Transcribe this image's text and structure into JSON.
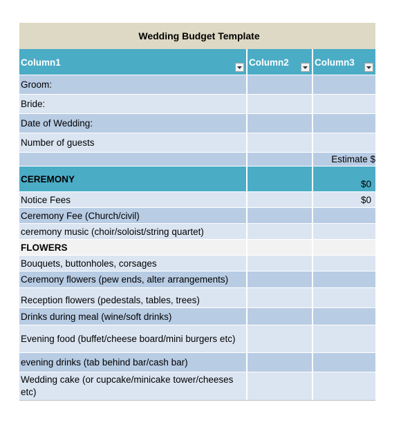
{
  "title": "Wedding Budget Template",
  "headers": [
    "Column1",
    "Column2",
    "Column3"
  ],
  "rows": {
    "groom": "Groom:",
    "bride": "Bride:",
    "date": "Date of Wedding:",
    "guests": "Number of guests",
    "estimate": "Estimate $",
    "ceremony": "CEREMONY",
    "ceremony_total": "$0",
    "notice": "Notice Fees",
    "notice_val": "$0",
    "ceremony_fee": "Ceremony Fee (Church/civil)",
    "ceremony_music": "ceremony music (choir/soloist/string quartet)",
    "flowers": "FLOWERS",
    "bouquets": "Bouquets, buttonholes, corsages",
    "ceremony_flowers": "Ceremony flowers (pew ends, alter arrangements)",
    "reception_flowers": "Reception flowers (pedestals, tables, trees)",
    "drinks_meal": "Drinks during meal (wine/soft drinks)",
    "evening_food": "Evening food (buffet/cheese board/mini burgers etc)",
    "evening_drinks": "evening drinks (tab behind bar/cash bar)",
    "cake": "Wedding cake (or cupcake/minicake tower/cheeses etc)"
  },
  "icons": {
    "filter": "dropdown-arrow-icon"
  },
  "colors": {
    "header": "#4bacc6",
    "title_bg": "#ddd9c4",
    "band_dark": "#b8cce4",
    "band_light": "#dbe5f1"
  }
}
